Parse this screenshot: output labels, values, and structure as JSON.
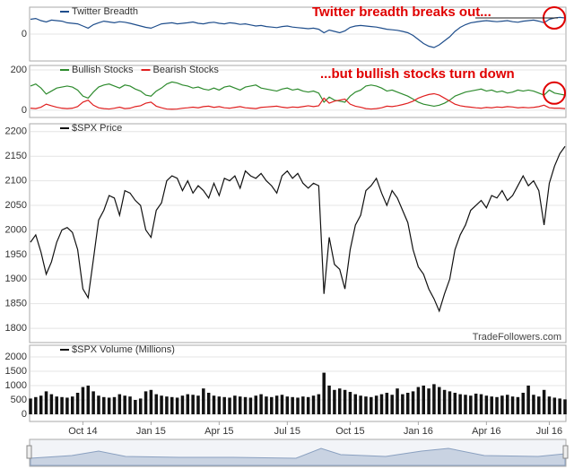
{
  "chart_data": [
    {
      "type": "line",
      "ylim": [
        -100,
        100
      ],
      "yticks": [
        0
      ],
      "annotation": "Twitter breadth breaks out...",
      "series": [
        {
          "name": "Twitter Breadth",
          "color": "#1f4e8c",
          "values": [
            55,
            58,
            50,
            45,
            52,
            50,
            48,
            42,
            40,
            38,
            30,
            22,
            35,
            42,
            48,
            45,
            42,
            46,
            44,
            40,
            35,
            30,
            25,
            22,
            30,
            38,
            40,
            42,
            38,
            40,
            42,
            45,
            40,
            38,
            42,
            44,
            40,
            38,
            42,
            40,
            36,
            38,
            34,
            30,
            32,
            28,
            26,
            24,
            28,
            30,
            26,
            24,
            22,
            20,
            22,
            18,
            5,
            15,
            10,
            5,
            12,
            25,
            30,
            32,
            30,
            28,
            26,
            22,
            18,
            16,
            14,
            10,
            5,
            -5,
            -20,
            -35,
            -45,
            -50,
            -40,
            -25,
            -10,
            10,
            25,
            35,
            42,
            45,
            48,
            50,
            48,
            46,
            48,
            50,
            46,
            44,
            48,
            50,
            52,
            48,
            42,
            55,
            60,
            62,
            60
          ]
        }
      ]
    },
    {
      "type": "line",
      "ylim": [
        -36,
        222
      ],
      "yticks": [
        0,
        200
      ],
      "annotation": "...but bullish stocks turn down",
      "series": [
        {
          "name": "Bullish Stocks",
          "color": "#2e8b2e",
          "values": [
            120,
            130,
            110,
            80,
            95,
            110,
            115,
            120,
            115,
            100,
            70,
            60,
            90,
            115,
            125,
            130,
            120,
            110,
            125,
            120,
            105,
            95,
            75,
            70,
            95,
            110,
            130,
            140,
            135,
            125,
            120,
            110,
            115,
            105,
            100,
            110,
            100,
            115,
            120,
            110,
            100,
            115,
            120,
            125,
            110,
            105,
            100,
            95,
            105,
            110,
            100,
            105,
            95,
            90,
            95,
            85,
            40,
            65,
            50,
            45,
            40,
            70,
            90,
            100,
            120,
            125,
            120,
            110,
            95,
            100,
            90,
            80,
            70,
            55,
            40,
            30,
            25,
            20,
            25,
            35,
            50,
            70,
            80,
            90,
            95,
            100,
            105,
            95,
            100,
            90,
            95,
            85,
            90,
            100,
            95,
            100,
            95,
            85,
            75,
            100,
            85,
            80,
            75
          ]
        },
        {
          "name": "Bearish Stocks",
          "color": "#e02020",
          "values": [
            10,
            8,
            15,
            30,
            22,
            15,
            10,
            8,
            10,
            18,
            40,
            50,
            25,
            12,
            8,
            6,
            10,
            15,
            8,
            10,
            18,
            22,
            35,
            40,
            20,
            12,
            6,
            5,
            6,
            10,
            12,
            15,
            12,
            18,
            20,
            14,
            18,
            12,
            10,
            14,
            18,
            12,
            10,
            8,
            14,
            16,
            18,
            20,
            15,
            12,
            16,
            14,
            18,
            22,
            18,
            22,
            60,
            35,
            45,
            50,
            55,
            30,
            20,
            15,
            8,
            6,
            8,
            12,
            20,
            18,
            22,
            28,
            35,
            45,
            60,
            70,
            78,
            82,
            75,
            60,
            45,
            30,
            22,
            18,
            15,
            12,
            10,
            14,
            12,
            16,
            14,
            18,
            16,
            12,
            14,
            12,
            14,
            18,
            25,
            12,
            10,
            10,
            8
          ]
        }
      ]
    },
    {
      "type": "line",
      "ylim": [
        1771,
        2216
      ],
      "yticks": [
        1800,
        1850,
        1900,
        1950,
        2000,
        2050,
        2100,
        2150,
        2200
      ],
      "source": "TradeFollowers.com",
      "series": [
        {
          "name": "$SPX Price",
          "color": "#111111",
          "values": [
            1975,
            1990,
            1955,
            1910,
            1935,
            1975,
            2000,
            2005,
            1995,
            1960,
            1880,
            1862,
            1940,
            2020,
            2040,
            2070,
            2065,
            2030,
            2080,
            2075,
            2060,
            2050,
            2000,
            1985,
            2040,
            2055,
            2100,
            2110,
            2105,
            2080,
            2100,
            2075,
            2090,
            2080,
            2065,
            2095,
            2070,
            2105,
            2100,
            2110,
            2085,
            2120,
            2110,
            2105,
            2115,
            2100,
            2090,
            2075,
            2110,
            2120,
            2105,
            2115,
            2095,
            2085,
            2095,
            2090,
            1870,
            1985,
            1930,
            1920,
            1880,
            1960,
            2010,
            2030,
            2080,
            2090,
            2105,
            2075,
            2050,
            2080,
            2065,
            2040,
            2015,
            1960,
            1925,
            1910,
            1880,
            1860,
            1835,
            1870,
            1900,
            1960,
            1990,
            2010,
            2040,
            2050,
            2060,
            2045,
            2070,
            2065,
            2080,
            2060,
            2070,
            2090,
            2110,
            2090,
            2100,
            2080,
            2010,
            2095,
            2130,
            2155,
            2170
          ]
        }
      ]
    },
    {
      "type": "bar",
      "ylim": [
        -250,
        2406
      ],
      "yticks": [
        0,
        500,
        1000,
        1500,
        2000
      ],
      "categories": [
        null,
        null,
        null,
        null,
        null,
        null,
        null,
        null,
        null,
        null,
        "Oct 14",
        null,
        null,
        null,
        null,
        null,
        null,
        null,
        null,
        null,
        null,
        null,
        null,
        "Jan 15",
        null,
        null,
        null,
        null,
        null,
        null,
        null,
        null,
        null,
        null,
        null,
        null,
        "Apr 15",
        null,
        null,
        null,
        null,
        null,
        null,
        null,
        null,
        null,
        null,
        null,
        null,
        "Jul 15",
        null,
        null,
        null,
        null,
        null,
        null,
        null,
        null,
        null,
        null,
        null,
        "Oct 15",
        null,
        null,
        null,
        null,
        null,
        null,
        null,
        null,
        null,
        null,
        null,
        null,
        "Jan 16",
        null,
        null,
        null,
        null,
        null,
        null,
        null,
        null,
        null,
        null,
        null,
        null,
        "Apr 16",
        null,
        null,
        null,
        null,
        null,
        null,
        null,
        null,
        null,
        null,
        null,
        "Jul 16",
        null,
        null,
        null
      ],
      "series": [
        {
          "name": "$SPX Volume (Millions)",
          "color": "#111111",
          "values": [
            550,
            600,
            650,
            800,
            700,
            620,
            600,
            580,
            620,
            750,
            950,
            1000,
            800,
            650,
            600,
            580,
            600,
            700,
            650,
            620,
            500,
            550,
            800,
            850,
            700,
            650,
            620,
            600,
            580,
            650,
            700,
            680,
            650,
            900,
            750,
            650,
            620,
            600,
            580,
            650,
            620,
            600,
            580,
            650,
            700,
            620,
            600,
            650,
            680,
            620,
            600,
            580,
            620,
            600,
            650,
            700,
            1450,
            1000,
            850,
            900,
            850,
            780,
            700,
            650,
            620,
            600,
            650,
            700,
            750,
            680,
            900,
            700,
            750,
            800,
            950,
            1000,
            900,
            1050,
            950,
            850,
            800,
            750,
            700,
            680,
            650,
            720,
            700,
            650,
            620,
            600,
            650,
            680,
            620,
            600,
            750,
            1000,
            680,
            620,
            850,
            620,
            580,
            550,
            520
          ]
        }
      ]
    }
  ]
}
